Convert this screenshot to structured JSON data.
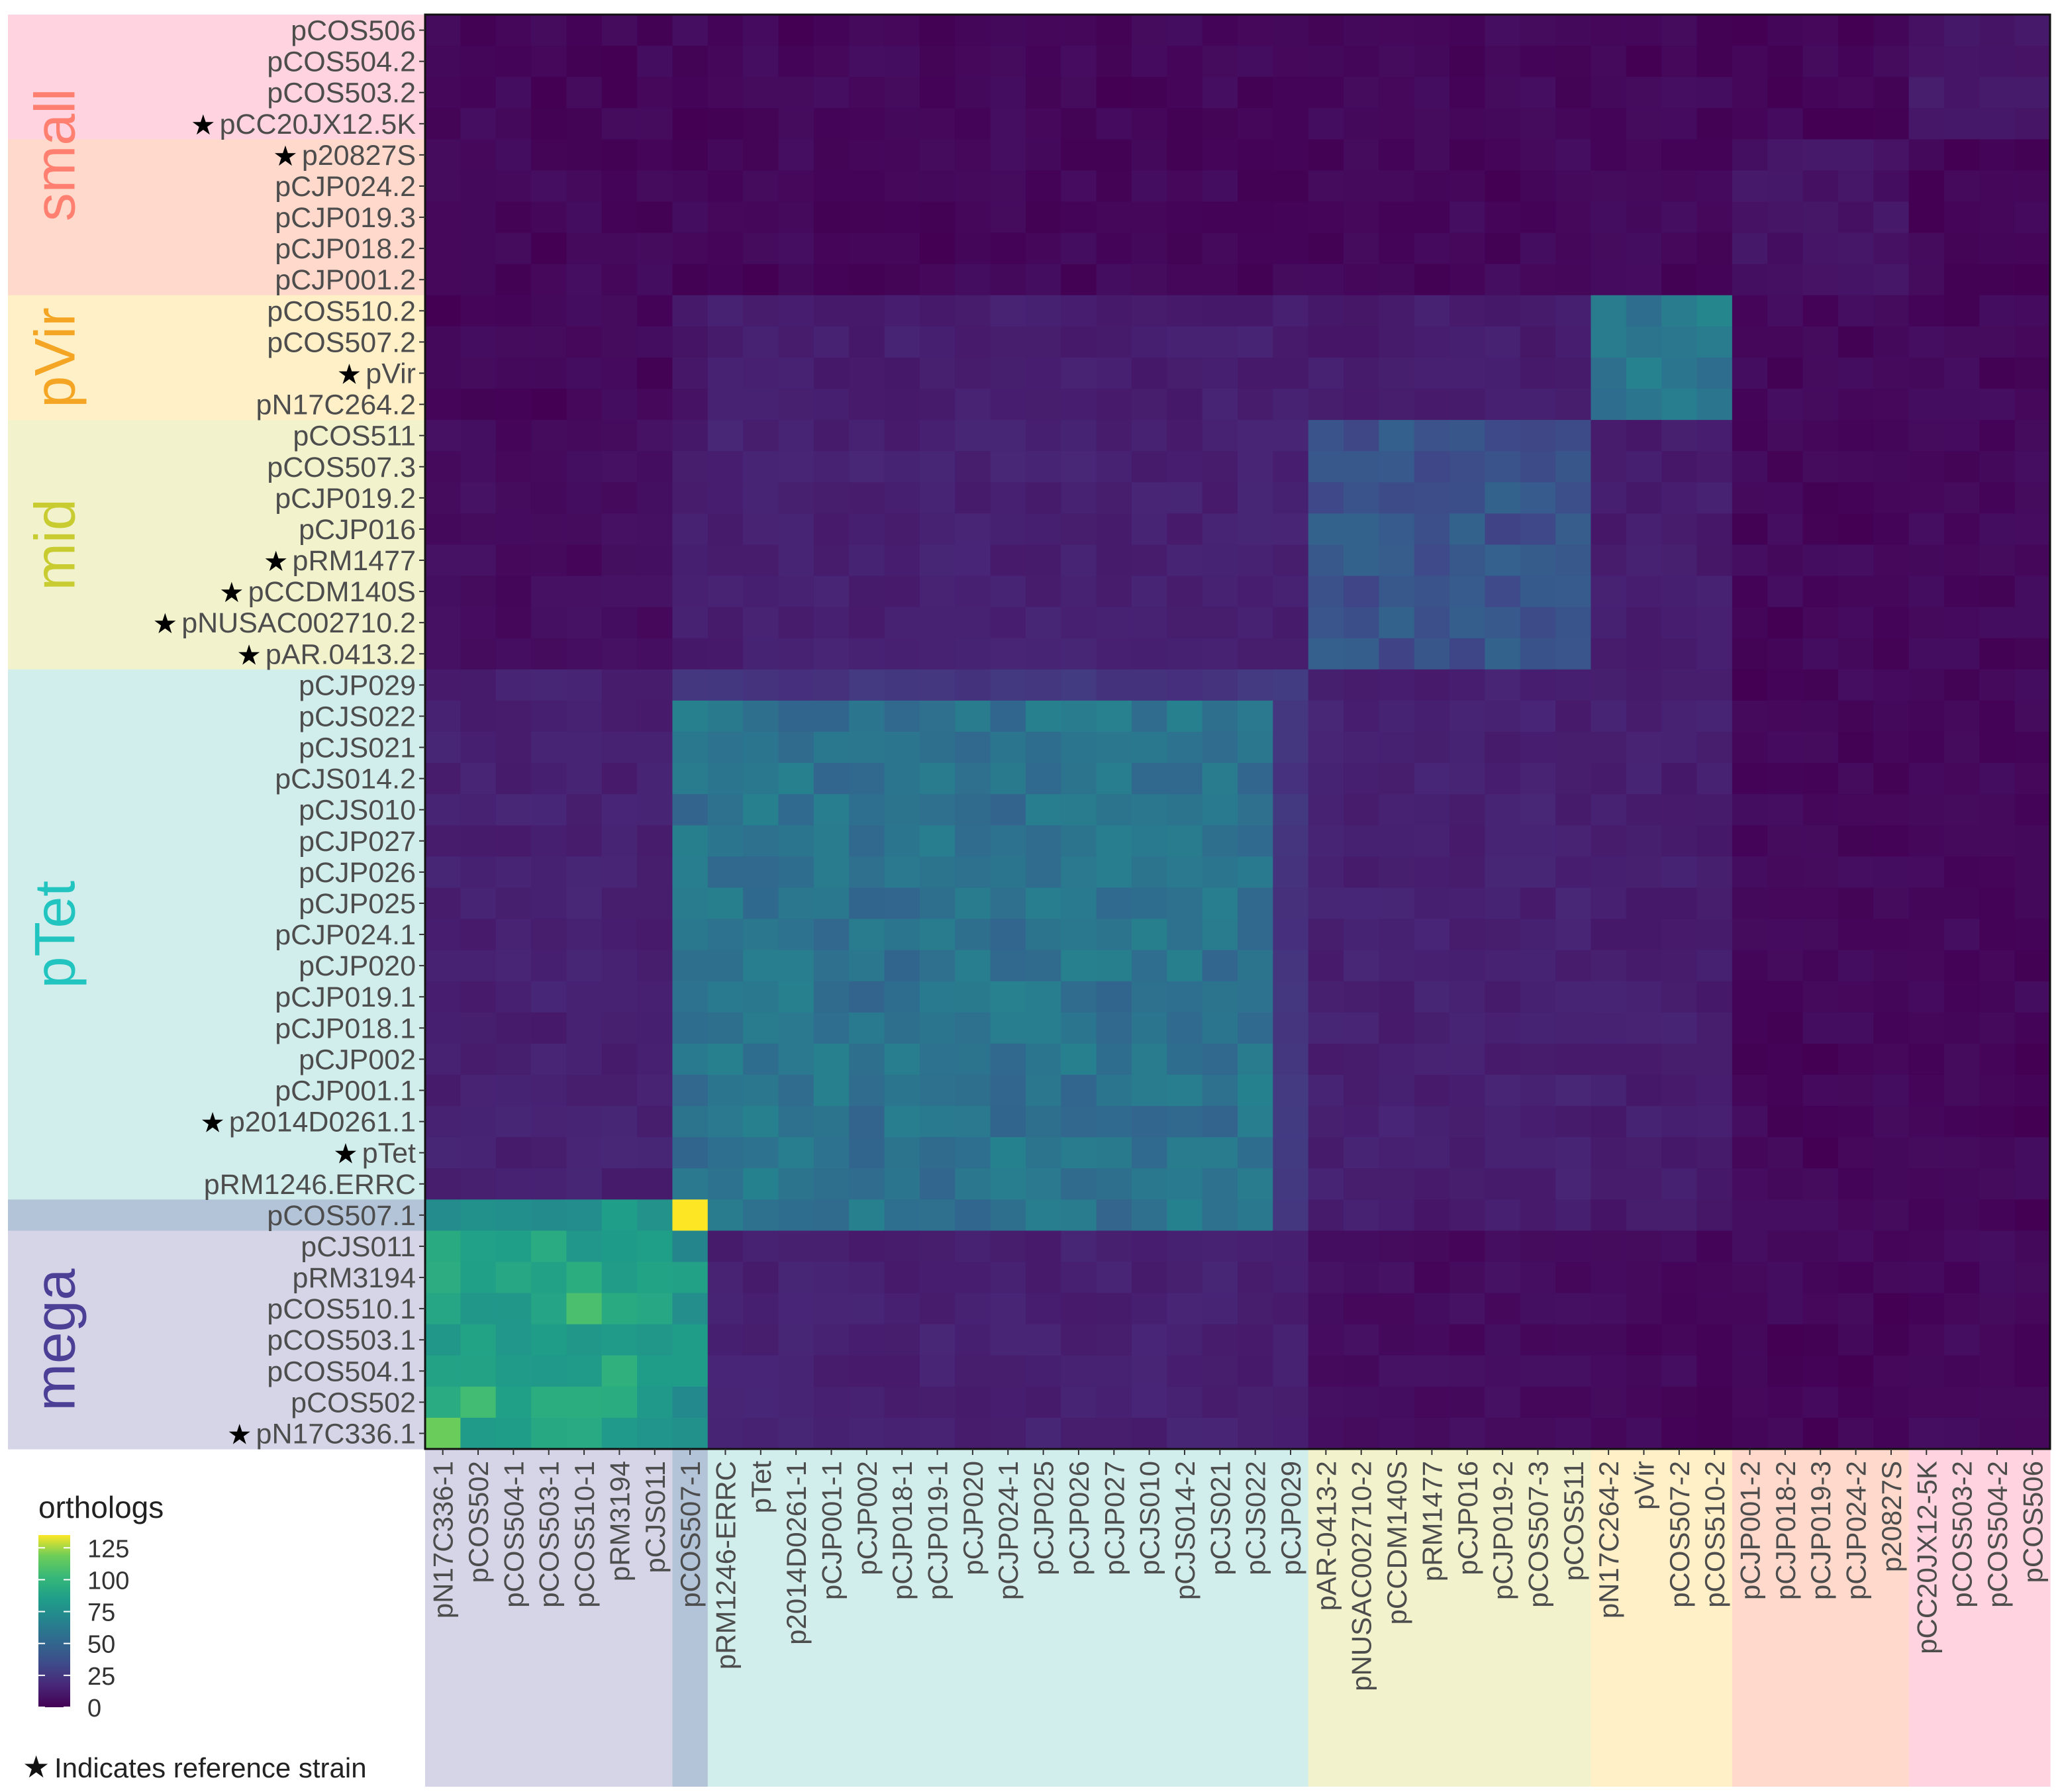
{
  "chart_data": {
    "type": "heatmap",
    "title": "",
    "value_range": [
      0,
      135
    ],
    "legend": {
      "title": "orthologs",
      "ticks": [
        125,
        100,
        75,
        50,
        25,
        0
      ],
      "placement": "bottom-left",
      "note": "Indicates reference strain",
      "note_symbol": "★"
    },
    "groups": [
      {
        "name": "small",
        "color": "#FF8070",
        "bg": "#FFD9CC"
      },
      {
        "name": "pVir",
        "color": "#F5A524",
        "bg": "#FFF0C8"
      },
      {
        "name": "mid",
        "color": "#C8CC30",
        "bg": "#F2F3CC"
      },
      {
        "name": "pTet",
        "color": "#22C4C0",
        "bg": "#D2EEEC"
      },
      {
        "name": "mega",
        "color": "#4B3F96",
        "bg": "#D6D5E8"
      }
    ],
    "rows": [
      {
        "label": "pCOS506",
        "ref": false,
        "g": "small2",
        "x": "pCOS506"
      },
      {
        "label": "pCOS504.2",
        "ref": false,
        "g": "small2",
        "x": "pCOS504-2"
      },
      {
        "label": "pCOS503.2",
        "ref": false,
        "g": "small2",
        "x": "pCOS503-2"
      },
      {
        "label": "pCC20JX12.5K",
        "ref": true,
        "g": "small2",
        "x": "pCC20JX12-5K"
      },
      {
        "label": "p20827S",
        "ref": true,
        "g": "small",
        "x": "p20827S"
      },
      {
        "label": "pCJP024.2",
        "ref": false,
        "g": "small",
        "x": "pCJP024-2"
      },
      {
        "label": "pCJP019.3",
        "ref": false,
        "g": "small",
        "x": "pCJP019-3"
      },
      {
        "label": "pCJP018.2",
        "ref": false,
        "g": "small",
        "x": "pCJP018-2"
      },
      {
        "label": "pCJP001.2",
        "ref": false,
        "g": "small",
        "x": "pCJP001-2"
      },
      {
        "label": "pCOS510.2",
        "ref": false,
        "g": "pVir",
        "x": "pCOS510-2"
      },
      {
        "label": "pCOS507.2",
        "ref": false,
        "g": "pVir",
        "x": "pCOS507-2"
      },
      {
        "label": "pVir",
        "ref": true,
        "g": "pVir",
        "x": "pVir"
      },
      {
        "label": "pN17C264.2",
        "ref": false,
        "g": "pVir",
        "x": "pN17C264-2"
      },
      {
        "label": "pCOS511",
        "ref": false,
        "g": "mid",
        "x": "pCOS511"
      },
      {
        "label": "pCOS507.3",
        "ref": false,
        "g": "mid",
        "x": "pCOS507-3"
      },
      {
        "label": "pCJP019.2",
        "ref": false,
        "g": "mid",
        "x": "pCJP019-2"
      },
      {
        "label": "pCJP016",
        "ref": false,
        "g": "mid",
        "x": "pCJP016"
      },
      {
        "label": "pRM1477",
        "ref": true,
        "g": "mid",
        "x": "pRM1477"
      },
      {
        "label": "pCCDM140S",
        "ref": true,
        "g": "mid",
        "x": "pCCDM140S"
      },
      {
        "label": "pNUSAC002710.2",
        "ref": true,
        "g": "mid",
        "x": "pNUSAC002710-2"
      },
      {
        "label": "pAR.0413.2",
        "ref": true,
        "g": "mid",
        "x": "pAR-0413-2"
      },
      {
        "label": "pCJP029",
        "ref": false,
        "g": "pTet",
        "x": "pCJP029"
      },
      {
        "label": "pCJS022",
        "ref": false,
        "g": "pTet",
        "x": "pCJS022"
      },
      {
        "label": "pCJS021",
        "ref": false,
        "g": "pTet",
        "x": "pCJS021"
      },
      {
        "label": "pCJS014.2",
        "ref": false,
        "g": "pTet",
        "x": "pCJS014-2"
      },
      {
        "label": "pCJS010",
        "ref": false,
        "g": "pTet",
        "x": "pCJS010"
      },
      {
        "label": "pCJP027",
        "ref": false,
        "g": "pTet",
        "x": "pCJP027"
      },
      {
        "label": "pCJP026",
        "ref": false,
        "g": "pTet",
        "x": "pCJP026"
      },
      {
        "label": "pCJP025",
        "ref": false,
        "g": "pTet",
        "x": "pCJP025"
      },
      {
        "label": "pCJP024.1",
        "ref": false,
        "g": "pTet",
        "x": "pCJP024-1"
      },
      {
        "label": "pCJP020",
        "ref": false,
        "g": "pTet",
        "x": "pCJP020"
      },
      {
        "label": "pCJP019.1",
        "ref": false,
        "g": "pTet",
        "x": "pCJP019-1"
      },
      {
        "label": "pCJP018.1",
        "ref": false,
        "g": "pTet",
        "x": "pCJP018-1"
      },
      {
        "label": "pCJP002",
        "ref": false,
        "g": "pTet",
        "x": "pCJP002"
      },
      {
        "label": "pCJP001.1",
        "ref": false,
        "g": "pTet",
        "x": "pCJP001-1"
      },
      {
        "label": "p2014D0261.1",
        "ref": true,
        "g": "pTet",
        "x": "p2014D0261-1"
      },
      {
        "label": "pTet",
        "ref": true,
        "g": "pTet",
        "x": "pTet"
      },
      {
        "label": "pRM1246.ERRC",
        "ref": false,
        "g": "pTet",
        "x": "pRM1246-ERRC"
      },
      {
        "label": "pCOS507.1",
        "ref": false,
        "g": "pcos5071",
        "x": "pCOS507-1"
      },
      {
        "label": "pCJS011",
        "ref": false,
        "g": "mega",
        "x": "pCJS011"
      },
      {
        "label": "pRM3194",
        "ref": false,
        "g": "mega",
        "x": "pRM3194"
      },
      {
        "label": "pCOS510.1",
        "ref": false,
        "g": "mega",
        "x": "pCOS510-1"
      },
      {
        "label": "pCOS503.1",
        "ref": false,
        "g": "mega",
        "x": "pCOS503-1"
      },
      {
        "label": "pCOS504.1",
        "ref": false,
        "g": "mega",
        "x": "pCOS504-1"
      },
      {
        "label": "pCOS502",
        "ref": false,
        "g": "mega",
        "x": "pCOS502"
      },
      {
        "label": "pN17C336.1",
        "ref": true,
        "g": "mega",
        "x": "pN17C336-1"
      }
    ],
    "block_values": {
      "mega|mega": 88,
      "mega|pcos5071": 78,
      "pcos5071|pcos5071": 135,
      "pTet|pTet": 58,
      "pTet|mega": 14,
      "pTet|pcos5071": 58,
      "mid|mid": 40,
      "mid|pTet": 14,
      "mid|mega": 5,
      "mid|pcos5071": 12,
      "pVir|pVir": 62,
      "pVir|pTet": 13,
      "pVir|mid": 12,
      "pVir|mega": 3,
      "pVir|pcos5071": 10,
      "small|small": 8,
      "small2|small2": 10,
      "small|small2": 2,
      "pTet_self_row_pCJP029": 22
    },
    "special_values": [
      {
        "row": "pCOS507.1",
        "col": "pCOS507-1",
        "value": 135
      },
      {
        "row": "pN17C336.1",
        "col": "pN17C336-1",
        "value": 118
      },
      {
        "row": "pCOS510.1",
        "col": "pCOS510-1",
        "value": 108
      },
      {
        "row": "pCOS502",
        "col": "pCOS502",
        "value": 105
      }
    ]
  }
}
